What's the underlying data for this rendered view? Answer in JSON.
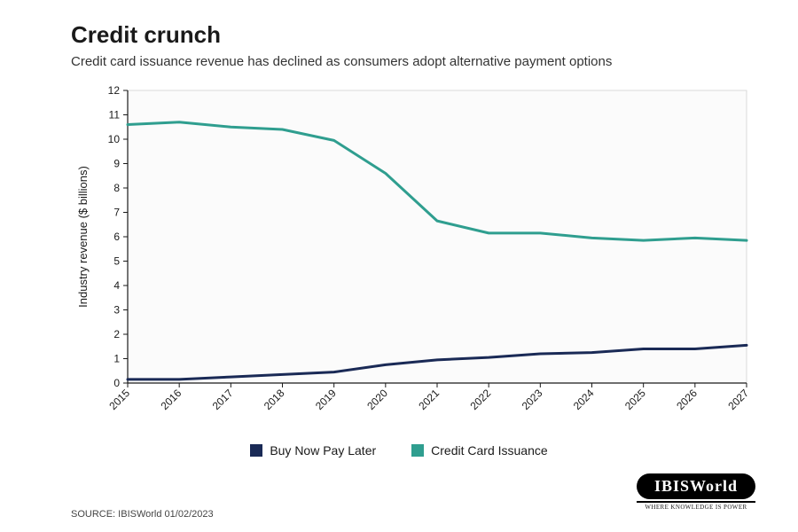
{
  "title": "Credit crunch",
  "subtitle": "Credit card issuance revenue has declined as consumers adopt alternative payment options",
  "source": "SOURCE: IBISWorld 01/02/2023",
  "brand": {
    "name": "IBISWorld",
    "tagline": "WHERE KNOWLEDGE IS POWER"
  },
  "chart": {
    "type": "line",
    "ylabel": "Industry revenue ($ billions)",
    "ylim": [
      0,
      12
    ],
    "ytick_step": 1,
    "years": [
      2015,
      2016,
      2017,
      2018,
      2019,
      2020,
      2021,
      2022,
      2023,
      2024,
      2025,
      2026,
      2027
    ],
    "series": [
      {
        "name": "Buy Now Pay Later",
        "color": "#1a2a56",
        "values": [
          0.15,
          0.15,
          0.25,
          0.35,
          0.45,
          0.75,
          0.95,
          1.05,
          1.2,
          1.25,
          1.4,
          1.4,
          1.55
        ]
      },
      {
        "name": "Credit Card Issuance",
        "color": "#2f9e8f",
        "values": [
          10.6,
          10.7,
          10.5,
          10.4,
          9.95,
          8.6,
          6.65,
          6.15,
          6.15,
          5.95,
          5.85,
          5.95,
          5.85
        ]
      }
    ],
    "line_width": 3,
    "plot_background": "#fbfbfb",
    "plot_border": "#d9d9d9",
    "axis_color": "#1a1a1a",
    "tick_fontsize": 12,
    "label_fontsize": 13,
    "title_fontsize": 26,
    "subtitle_fontsize": 15
  }
}
